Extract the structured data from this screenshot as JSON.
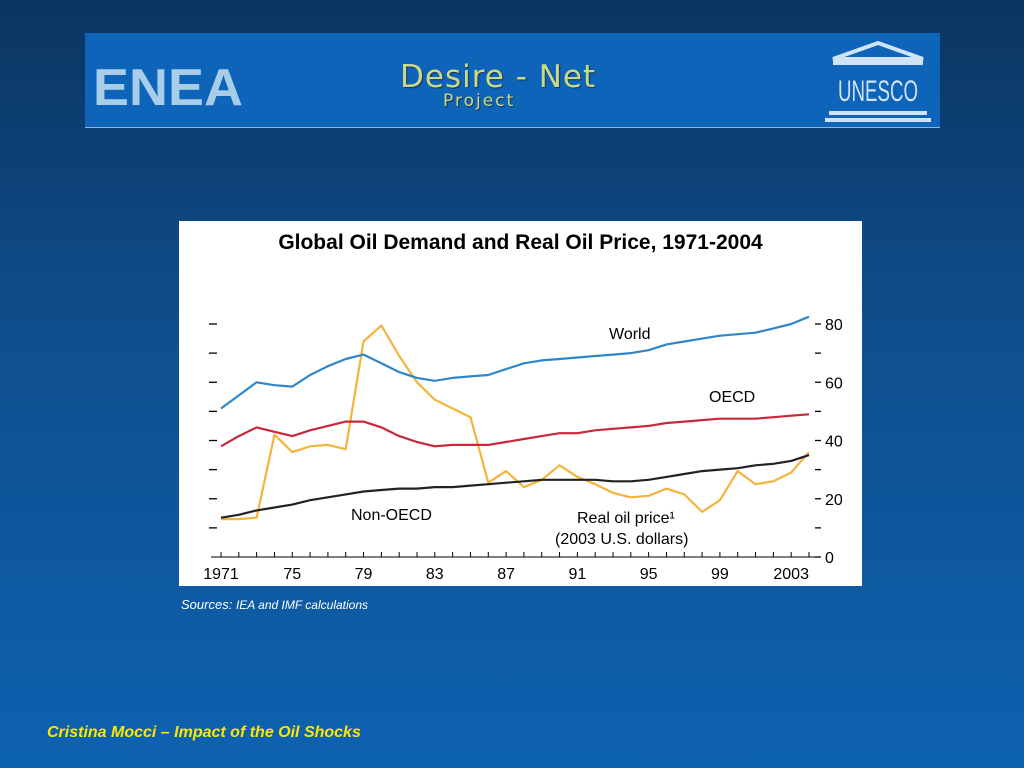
{
  "banner": {
    "left_logo": "ENEA",
    "title": "Desire - Net",
    "subtitle": "Project",
    "right_logo": "UNESCO"
  },
  "sources": {
    "label": "Sources:",
    "text": "IEA and IMF calculations"
  },
  "footer": "Cristina Mocci – Impact of the Oil Shocks",
  "chart_data": {
    "type": "line",
    "title": "Global Oil Demand and Real Oil Price, 1971-2004",
    "xlabel": "",
    "ylabel": "",
    "x_tick_labels": [
      "1971",
      "75",
      "79",
      "83",
      "87",
      "91",
      "95",
      "99",
      "2003"
    ],
    "x_ticks": [
      1971,
      1975,
      1979,
      1983,
      1987,
      1991,
      1995,
      1999,
      2003
    ],
    "xlim": [
      1971,
      2004
    ],
    "y_right_ticks": [
      0,
      20,
      40,
      60,
      80
    ],
    "ylim": [
      0,
      80
    ],
    "left_axis_tick_count": 8,
    "grid": false,
    "colors": {
      "world": "#2f86c9",
      "oecd": "#c8283c",
      "non_oecd": "#222222",
      "real_oil_price": "#f4b43c"
    },
    "series": [
      {
        "name": "World",
        "color": "#2f86c9",
        "x": [
          1971,
          1972,
          1973,
          1974,
          1975,
          1976,
          1977,
          1978,
          1979,
          1980,
          1981,
          1982,
          1983,
          1984,
          1985,
          1986,
          1987,
          1988,
          1989,
          1990,
          1991,
          1992,
          1993,
          1994,
          1995,
          1996,
          1997,
          1998,
          1999,
          2000,
          2001,
          2002,
          2003,
          2004
        ],
        "values": [
          51,
          55.5,
          60,
          59,
          58.5,
          62.5,
          65.5,
          68,
          69.5,
          66.5,
          63.5,
          61.5,
          60.5,
          61.5,
          62,
          62.5,
          64.5,
          66.5,
          67.5,
          68,
          68.5,
          69,
          69.5,
          70,
          71,
          73,
          74,
          75,
          76,
          76.5,
          77,
          78.5,
          80,
          82.5
        ]
      },
      {
        "name": "OECD",
        "color": "#c8283c",
        "x": [
          1971,
          1972,
          1973,
          1974,
          1975,
          1976,
          1977,
          1978,
          1979,
          1980,
          1981,
          1982,
          1983,
          1984,
          1985,
          1986,
          1987,
          1988,
          1989,
          1990,
          1991,
          1992,
          1993,
          1994,
          1995,
          1996,
          1997,
          1998,
          1999,
          2000,
          2001,
          2002,
          2003,
          2004
        ],
        "values": [
          38,
          41.5,
          44.5,
          43,
          41.5,
          43.5,
          45,
          46.5,
          46.5,
          44.5,
          41.5,
          39.5,
          38,
          38.5,
          38.5,
          38.5,
          39.5,
          40.5,
          41.5,
          42.5,
          42.5,
          43.5,
          44,
          44.5,
          45,
          46,
          46.5,
          47,
          47.5,
          47.5,
          47.5,
          48,
          48.5,
          49
        ]
      },
      {
        "name": "Non-OECD",
        "color": "#222222",
        "x": [
          1971,
          1972,
          1973,
          1974,
          1975,
          1976,
          1977,
          1978,
          1979,
          1980,
          1981,
          1982,
          1983,
          1984,
          1985,
          1986,
          1987,
          1988,
          1989,
          1990,
          1991,
          1992,
          1993,
          1994,
          1995,
          1996,
          1997,
          1998,
          1999,
          2000,
          2001,
          2002,
          2003,
          2004
        ],
        "values": [
          13.5,
          14.5,
          16,
          17,
          18,
          19.5,
          20.5,
          21.5,
          22.5,
          23,
          23.5,
          23.5,
          24,
          24,
          24.5,
          25,
          25.5,
          26,
          26.5,
          26.5,
          26.5,
          26.5,
          26,
          26,
          26.5,
          27.5,
          28.5,
          29.5,
          30,
          30.5,
          31.5,
          32,
          33,
          35
        ]
      },
      {
        "name": "Real oil price¹ (2003 U.S. dollars)",
        "color": "#f4b43c",
        "x": [
          1971,
          1972,
          1973,
          1974,
          1975,
          1976,
          1977,
          1978,
          1979,
          1980,
          1981,
          1982,
          1983,
          1984,
          1985,
          1986,
          1987,
          1988,
          1989,
          1990,
          1991,
          1992,
          1993,
          1994,
          1995,
          1996,
          1997,
          1998,
          1999,
          2000,
          2001,
          2002,
          2003,
          2004
        ],
        "values": [
          13,
          13,
          13.5,
          42,
          36,
          38,
          38.5,
          37,
          74,
          79.5,
          69,
          60,
          54,
          51,
          48,
          25.5,
          29.5,
          24,
          26.5,
          31.5,
          27.5,
          25,
          22,
          20.5,
          21,
          23.5,
          21.5,
          15.5,
          19.5,
          29.5,
          25,
          26,
          29,
          36
        ]
      }
    ],
    "annotations": [
      {
        "text": "World",
        "series": "World"
      },
      {
        "text": "OECD",
        "series": "OECD"
      },
      {
        "text": "Non-OECD",
        "series": "Non-OECD"
      },
      {
        "text": "Real oil price¹",
        "series": "Real oil price"
      },
      {
        "text": "(2003 U.S. dollars)",
        "series": "Real oil price"
      }
    ]
  }
}
